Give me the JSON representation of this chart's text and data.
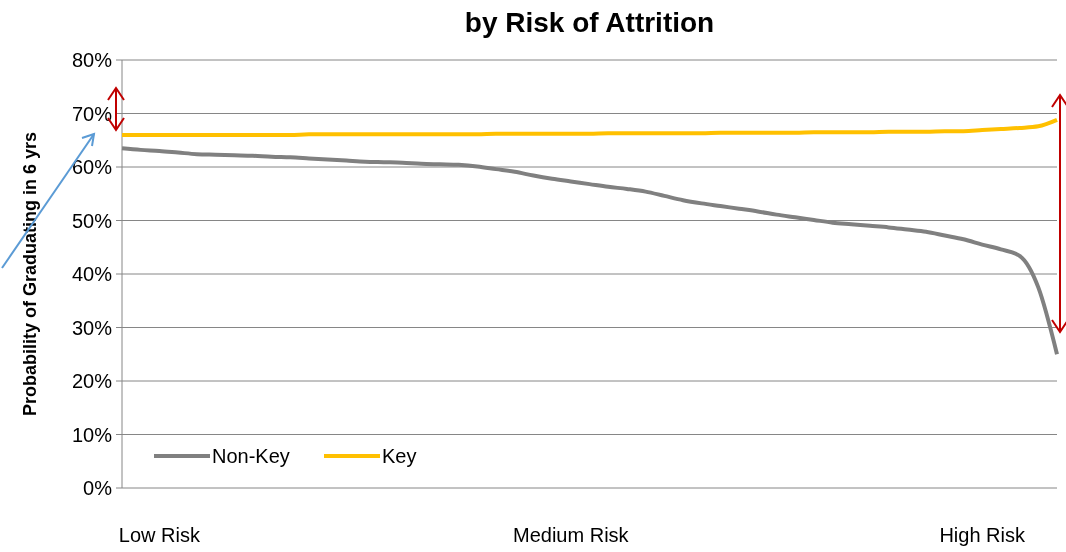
{
  "chart_data": {
    "type": "line",
    "title": "by Risk of Attrition",
    "ylabel": "Probability of Graduating in 6 yrs",
    "categories": [
      null,
      null,
      "Low Risk",
      null,
      null,
      null,
      null,
      null,
      null,
      null,
      null,
      null,
      null,
      null,
      null,
      null,
      null,
      null,
      null,
      null,
      null,
      null,
      null,
      null,
      "Medium Risk",
      null,
      null,
      null,
      null,
      null,
      null,
      null,
      null,
      null,
      null,
      null,
      null,
      null,
      null,
      null,
      null,
      null,
      null,
      null,
      null,
      null,
      "High Risk",
      null,
      null,
      null,
      null
    ],
    "ylim": [
      0,
      80
    ],
    "yticks": [
      {
        "value": 0,
        "label": "0%"
      },
      {
        "value": 10,
        "label": "10%"
      },
      {
        "value": 20,
        "label": "20%"
      },
      {
        "value": 30,
        "label": "30%"
      },
      {
        "value": 40,
        "label": "40%"
      },
      {
        "value": 50,
        "label": "50%"
      },
      {
        "value": 60,
        "label": "60%"
      },
      {
        "value": 70,
        "label": "70%"
      },
      {
        "value": 80,
        "label": "80%"
      }
    ],
    "grid": "y",
    "legend": "bottom left",
    "marker": "none",
    "line_style": "solid",
    "series": [
      {
        "name": "Non-Key",
        "color": "#808080",
        "values": [
          63.5,
          63.2,
          63.0,
          62.7,
          62.4,
          62.3,
          62.2,
          62.1,
          61.9,
          61.8,
          61.6,
          61.4,
          61.2,
          61.0,
          60.9,
          60.8,
          60.6,
          60.5,
          60.4,
          60.1,
          59.6,
          59.1,
          58.4,
          57.8,
          57.3,
          56.8,
          56.3,
          55.9,
          55.4,
          54.6,
          53.8,
          53.2,
          52.7,
          52.2,
          51.7,
          51.1,
          50.6,
          50.1,
          49.6,
          49.3,
          49.0,
          48.7,
          48.3,
          47.9,
          47.2,
          46.5,
          45.5,
          44.6,
          43.4,
          37.5,
          25
        ]
      },
      {
        "name": "Key",
        "color": "#ffc000",
        "values": [
          66.0,
          66.0,
          66.0,
          66.0,
          66.0,
          66.0,
          66.0,
          66.0,
          66.0,
          66.0,
          66.1,
          66.1,
          66.1,
          66.1,
          66.1,
          66.1,
          66.1,
          66.1,
          66.1,
          66.1,
          66.2,
          66.2,
          66.2,
          66.2,
          66.2,
          66.2,
          66.3,
          66.3,
          66.3,
          66.3,
          66.3,
          66.3,
          66.4,
          66.4,
          66.4,
          66.4,
          66.4,
          66.5,
          66.5,
          66.5,
          66.5,
          66.6,
          66.6,
          66.6,
          66.7,
          66.7,
          66.9,
          67.1,
          67.3,
          67.6,
          68.8
        ]
      }
    ]
  }
}
